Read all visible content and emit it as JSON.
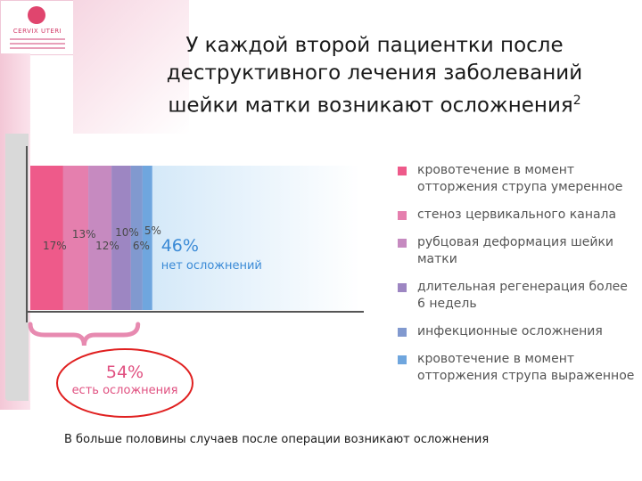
{
  "logo": {
    "name": "CERVIX UTERI"
  },
  "title": "У каждой второй пациентки после деструктивного лечения заболеваний шейки матки возникают осложнения",
  "title_sup": "2",
  "footer": "В больше половины случаев после операции возникают осложнения",
  "colors": {
    "axis": "#555555",
    "callout_ring": "#e02020",
    "callout_text": "#e05080",
    "no_complication_text": "#3a8ad6"
  },
  "chart_data": {
    "type": "bar",
    "stacked": true,
    "orientation": "horizontal",
    "title": "",
    "xlabel": "",
    "ylabel": "",
    "xlim": [
      0,
      100
    ],
    "grid": false,
    "legend_position": "right",
    "series": [
      {
        "name": "кровотечение в момент отторжения струпа умеренное",
        "value": 17,
        "label": "17%",
        "color": "#ee5a8a"
      },
      {
        "name": "стеноз цервикального канала",
        "value": 13,
        "label": "13%",
        "color": "#e57fae"
      },
      {
        "name": "рубцовая деформация шейки матки",
        "value": 12,
        "label": "12%",
        "color": "#c68ac0"
      },
      {
        "name": "длительная регенерация более 6 недель",
        "value": 10,
        "label": "10%",
        "color": "#9d86c2"
      },
      {
        "name": "инфекционные осложнения",
        "value": 6,
        "label": "6%",
        "color": "#8199cf"
      },
      {
        "name": "кровотечение в момент отторжения струпа выраженное",
        "value": 5,
        "label": "5%",
        "color": "#6fa6de"
      }
    ],
    "remainder": {
      "value": 46,
      "label": "46%",
      "text": "нет осложнений"
    },
    "callout": {
      "value": 54,
      "label": "54%",
      "text": "есть осложнения"
    }
  }
}
